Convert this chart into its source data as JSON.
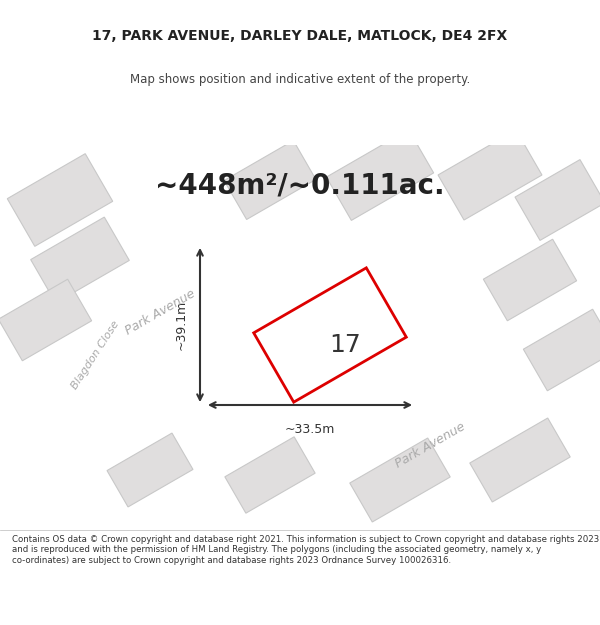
{
  "title_line1": "17, PARK AVENUE, DARLEY DALE, MATLOCK, DE4 2FX",
  "title_line2": "Map shows position and indicative extent of the property.",
  "area_text": "~448m²/~0.111ac.",
  "label_17": "17",
  "dim_horiz": "~33.5m",
  "dim_vert": "~39.1m",
  "street_label1": "Park Avenue",
  "street_label2": "Blagdon Close",
  "street_label3": "Park Avenue",
  "footer": "Contains OS data © Crown copyright and database right 2021. This information is subject to Crown copyright and database rights 2023 and is reproduced with the permission of HM Land Registry. The polygons (including the associated geometry, namely x, y co-ordinates) are subject to Crown copyright and database rights 2023 Ordnance Survey 100026316.",
  "bg_color": "#f0efef",
  "map_bg": "#f0efef",
  "road_color": "#ffffff",
  "block_color": "#e0dede",
  "block_edge_color": "#c8c8c8",
  "plot_outline_color": "#dd0000",
  "plot_fill_color": "#ffffff",
  "dim_line_color": "#333333",
  "street_text_color": "#aaaaaa",
  "footer_color": "#333333"
}
